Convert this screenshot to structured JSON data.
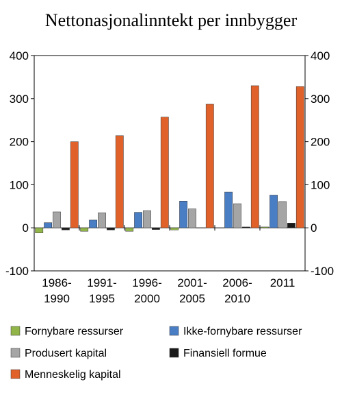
{
  "chart_data": {
    "type": "bar",
    "title": "Nettonasjonalinntekt per innbygger",
    "categories": [
      [
        "1986-",
        "1990"
      ],
      [
        "1991-",
        "1995"
      ],
      [
        "1996-",
        "2000"
      ],
      [
        "2001-",
        "2005"
      ],
      [
        "2006-",
        "2010"
      ],
      [
        "2011"
      ]
    ],
    "ylim": [
      -100,
      400
    ],
    "yticks": [
      -100,
      0,
      100,
      200,
      300,
      400
    ],
    "secondary_axis": true,
    "grid": false,
    "legend_position": "bottom",
    "series": [
      {
        "name": "Fornybare ressurser",
        "color": "#92b54a",
        "values": [
          -12,
          -8,
          -8,
          -5,
          0,
          2
        ]
      },
      {
        "name": "Ikke-fornybare ressurser",
        "color": "#4a7ec4",
        "values": [
          12,
          18,
          36,
          62,
          83,
          76
        ]
      },
      {
        "name": "Produsert kapital",
        "color": "#a5a5a5",
        "values": [
          37,
          35,
          40,
          44,
          56,
          61
        ]
      },
      {
        "name": "Finansiell formue",
        "color": "#1a1a1a",
        "values": [
          -5,
          -5,
          -4,
          0,
          2,
          11
        ]
      },
      {
        "name": "Menneskelig kapital",
        "color": "#e0622a",
        "values": [
          200,
          214,
          257,
          287,
          330,
          328
        ]
      }
    ]
  }
}
